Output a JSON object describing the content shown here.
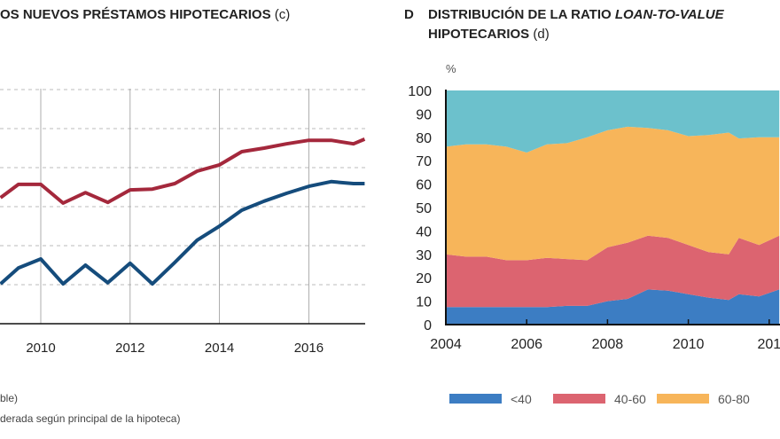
{
  "chart_data": [
    {
      "type": "line",
      "title": "OS NUEVOS PRÉSTAMOS HIPOTECARIOS",
      "title_note": "(c)",
      "x_ticks": [
        "2010",
        "2012",
        "2014",
        "2016"
      ],
      "grid": "dashed horizontal, solid vertical at year ticks",
      "xlim": [
        2009.1,
        2017.6
      ],
      "ylim": [
        0,
        6
      ],
      "x": [
        2009.1,
        2009.5,
        2010,
        2010.5,
        2011,
        2011.5,
        2012,
        2012.5,
        2013,
        2013.5,
        2014,
        2014.5,
        2015,
        2015.5,
        2016,
        2016.5,
        2017,
        2017.25
      ],
      "series": [
        {
          "color": "#a4283c",
          "values": [
            3.23,
            3.57,
            3.57,
            3.09,
            3.36,
            3.11,
            3.43,
            3.45,
            3.59,
            3.91,
            4.07,
            4.41,
            4.5,
            4.61,
            4.7,
            4.7,
            4.61,
            4.73
          ]
        },
        {
          "color": "#154c7c",
          "values": [
            1.02,
            1.43,
            1.66,
            1.02,
            1.5,
            1.05,
            1.55,
            1.02,
            1.57,
            2.14,
            2.5,
            2.91,
            3.14,
            3.34,
            3.52,
            3.64,
            3.59,
            3.59
          ]
        }
      ],
      "footnotes": [
        "ble)",
        "derada según principal de la hipoteca)"
      ]
    },
    {
      "type": "area",
      "stacked": true,
      "panel_letter": "D",
      "title_main": "DISTRIBUCIÓN DE LA RATIO ",
      "title_italic": "LOAN-TO-VALUE",
      "title_line2": "HIPOTECARIOS",
      "title_note": "(d)",
      "ylabel": "%",
      "ylim": [
        0,
        100
      ],
      "xlim": [
        2004,
        2012.26
      ],
      "y_ticks": [
        "0",
        "10",
        "20",
        "30",
        "40",
        "50",
        "60",
        "70",
        "80",
        "90",
        "100"
      ],
      "x_ticks": [
        "2004",
        "2006",
        "2008",
        "2010",
        "201"
      ],
      "x": [
        2004,
        2004.5,
        2005,
        2005.5,
        2006,
        2006.5,
        2007,
        2007.5,
        2008,
        2008.5,
        2009,
        2009.5,
        2010,
        2010.5,
        2011,
        2011.25,
        2011.75,
        2012.25
      ],
      "series": [
        {
          "name": "<40",
          "color": "#3c7dc3",
          "values": [
            7.5,
            7.5,
            7.5,
            7.5,
            7.5,
            7.5,
            8,
            8,
            10,
            11,
            15,
            14.5,
            13,
            11.5,
            10.5,
            13,
            12,
            15
          ]
        },
        {
          "name": "40-60",
          "color": "#dc6470",
          "values": [
            22.5,
            21.5,
            21.5,
            20,
            20,
            21,
            20,
            19.5,
            23,
            24,
            23,
            22.5,
            21,
            19.5,
            19.5,
            24,
            22,
            23
          ]
        },
        {
          "name": "60-80",
          "color": "#f7b55a",
          "values": [
            46,
            48,
            48,
            48.5,
            46,
            48.5,
            49.5,
            52.5,
            50,
            49.5,
            46,
            46,
            46.5,
            50,
            52,
            42.5,
            46,
            42
          ]
        },
        {
          "color": "#6cc1cc",
          "values": [
            24,
            23,
            23,
            24,
            26.5,
            23,
            22.5,
            20,
            17,
            15.5,
            16,
            17,
            19.5,
            19,
            18,
            20.5,
            20,
            20
          ]
        }
      ],
      "legend": "bottom"
    }
  ]
}
